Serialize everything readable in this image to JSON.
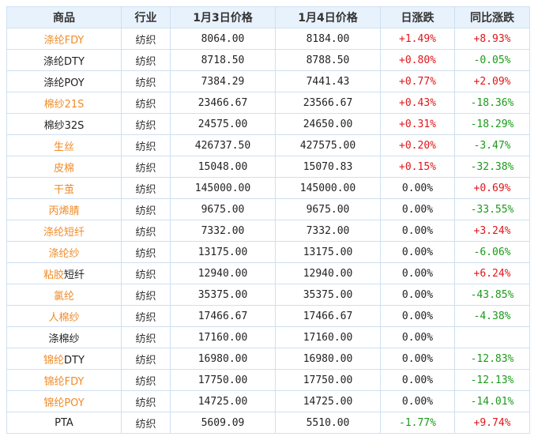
{
  "colors": {
    "link": "#f08b28",
    "up": "#e0161a",
    "down": "#1a9a1a",
    "header_bg": "#e8f2fc",
    "border": "#cfe0f1"
  },
  "headers": [
    "商品",
    "行业",
    "1月3日价格",
    "1月4日价格",
    "日涨跌",
    "同比涨跌"
  ],
  "rows": [
    {
      "name": "涤纶FDY",
      "name_link": true,
      "industry": "纺织",
      "p1": "8064.00",
      "p2": "8184.00",
      "day": "+1.49%",
      "day_dir": "up",
      "yoy": "+8.93%",
      "yoy_dir": "up"
    },
    {
      "name": "涤纶DTY",
      "name_link": false,
      "industry": "纺织",
      "p1": "8718.50",
      "p2": "8788.50",
      "day": "+0.80%",
      "day_dir": "up",
      "yoy": "-0.05%",
      "yoy_dir": "down"
    },
    {
      "name": "涤纶POY",
      "name_link": false,
      "industry": "纺织",
      "p1": "7384.29",
      "p2": "7441.43",
      "day": "+0.77%",
      "day_dir": "up",
      "yoy": "+2.09%",
      "yoy_dir": "up"
    },
    {
      "name": "棉纱21S",
      "name_link": true,
      "industry": "纺织",
      "p1": "23466.67",
      "p2": "23566.67",
      "day": "+0.43%",
      "day_dir": "up",
      "yoy": "-18.36%",
      "yoy_dir": "down"
    },
    {
      "name": "棉纱32S",
      "name_link": false,
      "industry": "纺织",
      "p1": "24575.00",
      "p2": "24650.00",
      "day": "+0.31%",
      "day_dir": "up",
      "yoy": "-18.29%",
      "yoy_dir": "down"
    },
    {
      "name": "生丝",
      "name_link": true,
      "industry": "纺织",
      "p1": "426737.50",
      "p2": "427575.00",
      "day": "+0.20%",
      "day_dir": "up",
      "yoy": "-3.47%",
      "yoy_dir": "down"
    },
    {
      "name": "皮棉",
      "name_link": true,
      "industry": "纺织",
      "p1": "15048.00",
      "p2": "15070.83",
      "day": "+0.15%",
      "day_dir": "up",
      "yoy": "-32.38%",
      "yoy_dir": "down"
    },
    {
      "name": "干茧",
      "name_link": true,
      "industry": "纺织",
      "p1": "145000.00",
      "p2": "145000.00",
      "day": "0.00%",
      "day_dir": "flat",
      "yoy": "+0.69%",
      "yoy_dir": "up"
    },
    {
      "name": "丙烯腈",
      "name_link": true,
      "industry": "纺织",
      "p1": "9675.00",
      "p2": "9675.00",
      "day": "0.00%",
      "day_dir": "flat",
      "yoy": "-33.55%",
      "yoy_dir": "down"
    },
    {
      "name": "涤纶短纤",
      "name_link": true,
      "industry": "纺织",
      "p1": "7332.00",
      "p2": "7332.00",
      "day": "0.00%",
      "day_dir": "flat",
      "yoy": "+3.24%",
      "yoy_dir": "up"
    },
    {
      "name": "涤纶纱",
      "name_link": true,
      "industry": "纺织",
      "p1": "13175.00",
      "p2": "13175.00",
      "day": "0.00%",
      "day_dir": "flat",
      "yoy": "-6.06%",
      "yoy_dir": "down"
    },
    {
      "name": "粘胶短纤",
      "name_link": "partial",
      "name_a": "粘胶",
      "name_b": "短纤",
      "industry": "纺织",
      "p1": "12940.00",
      "p2": "12940.00",
      "day": "0.00%",
      "day_dir": "flat",
      "yoy": "+6.24%",
      "yoy_dir": "up"
    },
    {
      "name": "氯纶",
      "name_link": true,
      "industry": "纺织",
      "p1": "35375.00",
      "p2": "35375.00",
      "day": "0.00%",
      "day_dir": "flat",
      "yoy": "-43.85%",
      "yoy_dir": "down"
    },
    {
      "name": "人棉纱",
      "name_link": true,
      "industry": "纺织",
      "p1": "17466.67",
      "p2": "17466.67",
      "day": "0.00%",
      "day_dir": "flat",
      "yoy": "-4.38%",
      "yoy_dir": "down"
    },
    {
      "name": "涤棉纱",
      "name_link": false,
      "industry": "纺织",
      "p1": "17160.00",
      "p2": "17160.00",
      "day": "0.00%",
      "day_dir": "flat",
      "yoy": "",
      "yoy_dir": "flat"
    },
    {
      "name": "锦纶DTY",
      "name_link": "partial",
      "name_a": "锦纶",
      "name_b": "DTY",
      "industry": "纺织",
      "p1": "16980.00",
      "p2": "16980.00",
      "day": "0.00%",
      "day_dir": "flat",
      "yoy": "-12.83%",
      "yoy_dir": "down"
    },
    {
      "name": "锦纶FDY",
      "name_link": true,
      "industry": "纺织",
      "p1": "17750.00",
      "p2": "17750.00",
      "day": "0.00%",
      "day_dir": "flat",
      "yoy": "-12.13%",
      "yoy_dir": "down"
    },
    {
      "name": "锦纶POY",
      "name_link": true,
      "industry": "纺织",
      "p1": "14725.00",
      "p2": "14725.00",
      "day": "0.00%",
      "day_dir": "flat",
      "yoy": "-14.01%",
      "yoy_dir": "down"
    },
    {
      "name": "PTA",
      "name_link": false,
      "industry": "纺织",
      "p1": "5609.09",
      "p2": "5510.00",
      "day": "-1.77%",
      "day_dir": "down",
      "yoy": "+9.74%",
      "yoy_dir": "up"
    }
  ]
}
